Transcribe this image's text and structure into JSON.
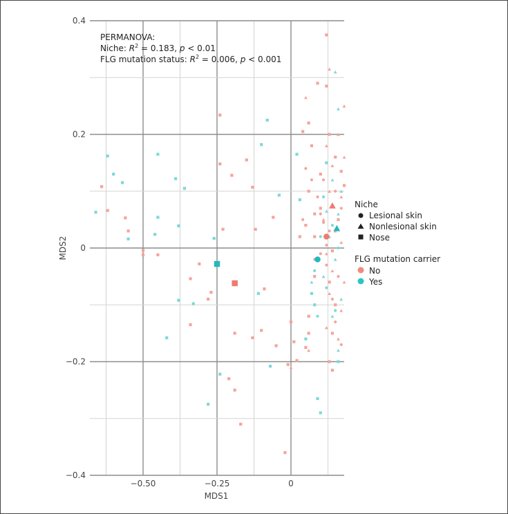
{
  "chart_data": {
    "type": "scatter",
    "xlabel": "MDS1",
    "ylabel": "MDS2",
    "xlim": [
      -0.68,
      0.18
    ],
    "ylim": [
      -0.4,
      0.4
    ],
    "xticks": [
      -0.5,
      -0.25,
      0
    ],
    "xtick_labels": [
      "−0.50",
      "−0.25",
      "0"
    ],
    "yticks": [
      0.4,
      0.2,
      0,
      -0.2,
      -0.4
    ],
    "ytick_labels": [
      "0.4",
      "0.2",
      "0",
      "−0.2",
      "−0.4"
    ],
    "annotation": {
      "title": "PERMANOVA:",
      "niche_prefix": "Niche: ",
      "r2_symbol": "R",
      "r2_exp": "2",
      "niche_value": " = 0.183, ",
      "p_symbol": "p",
      "niche_p": " < 0.01",
      "flg_prefix": "FLG mutation status: ",
      "flg_value": " = 0.006, ",
      "flg_p": " < 0.001"
    },
    "legend": {
      "niche_title": "Niche",
      "niche_items": [
        {
          "label": "Lesional skin",
          "shape": "circle"
        },
        {
          "label": "Nonlesional skin",
          "shape": "triangle"
        },
        {
          "label": "Nose",
          "shape": "square"
        }
      ],
      "flg_title": "FLG mutation carrier",
      "flg_items": [
        {
          "label": "No",
          "color": "#f08a80"
        },
        {
          "label": "Yes",
          "color": "#2ec4c4"
        }
      ]
    },
    "colors": {
      "No": "#f4a49b",
      "Yes": "#7dd9d6",
      "No_centroid": "#f07a70",
      "Yes_centroid": "#22b8bd"
    },
    "centroids": [
      {
        "niche": "Lesional skin",
        "flg": "No",
        "x": 0.12,
        "y": 0.02
      },
      {
        "niche": "Lesional skin",
        "flg": "Yes",
        "x": 0.09,
        "y": -0.02
      },
      {
        "niche": "Nonlesional skin",
        "flg": "No",
        "x": 0.14,
        "y": 0.075
      },
      {
        "niche": "Nonlesional skin",
        "flg": "Yes",
        "x": 0.155,
        "y": 0.035
      },
      {
        "niche": "Nose",
        "flg": "No",
        "x": -0.19,
        "y": -0.062
      },
      {
        "niche": "Nose",
        "flg": "Yes",
        "x": -0.25,
        "y": -0.028
      }
    ],
    "points": [
      {
        "n": "Nose",
        "f": "No",
        "x": -0.17,
        "y": -0.31
      },
      {
        "n": "Nose",
        "f": "No",
        "x": -0.02,
        "y": -0.36
      },
      {
        "n": "Nose",
        "f": "No",
        "x": -0.62,
        "y": 0.066
      },
      {
        "n": "Nose",
        "f": "No",
        "x": -0.64,
        "y": 0.108
      },
      {
        "n": "Nose",
        "f": "No",
        "x": -0.55,
        "y": 0.03
      },
      {
        "n": "Nose",
        "f": "No",
        "x": -0.56,
        "y": 0.053
      },
      {
        "n": "Nose",
        "f": "No",
        "x": -0.5,
        "y": -0.004
      },
      {
        "n": "Nose",
        "f": "No",
        "x": -0.5,
        "y": -0.012
      },
      {
        "n": "Nose",
        "f": "No",
        "x": -0.45,
        "y": -0.012
      },
      {
        "n": "Nose",
        "f": "No",
        "x": -0.31,
        "y": -0.028
      },
      {
        "n": "Nose",
        "f": "No",
        "x": -0.34,
        "y": -0.054
      },
      {
        "n": "Nose",
        "f": "No",
        "x": -0.27,
        "y": -0.078
      },
      {
        "n": "Nose",
        "f": "No",
        "x": -0.28,
        "y": -0.09
      },
      {
        "n": "Nose",
        "f": "No",
        "x": -0.34,
        "y": -0.135
      },
      {
        "n": "Nose",
        "f": "No",
        "x": -0.24,
        "y": 0.234
      },
      {
        "n": "Nose",
        "f": "No",
        "x": -0.24,
        "y": 0.148
      },
      {
        "n": "Nose",
        "f": "No",
        "x": -0.2,
        "y": 0.128
      },
      {
        "n": "Nose",
        "f": "No",
        "x": -0.19,
        "y": -0.15
      },
      {
        "n": "Nose",
        "f": "No",
        "x": -0.21,
        "y": -0.23
      },
      {
        "n": "Nose",
        "f": "No",
        "x": -0.19,
        "y": -0.25
      },
      {
        "n": "Nose",
        "f": "No",
        "x": -0.23,
        "y": 0.033
      },
      {
        "n": "Nose",
        "f": "No",
        "x": -0.13,
        "y": 0.107
      },
      {
        "n": "Nose",
        "f": "No",
        "x": -0.15,
        "y": 0.155
      },
      {
        "n": "Nose",
        "f": "No",
        "x": -0.12,
        "y": 0.033
      },
      {
        "n": "Nose",
        "f": "No",
        "x": -0.06,
        "y": 0.054
      },
      {
        "n": "Nose",
        "f": "No",
        "x": -0.09,
        "y": -0.072
      },
      {
        "n": "Nose",
        "f": "No",
        "x": -0.13,
        "y": -0.158
      },
      {
        "n": "Nose",
        "f": "No",
        "x": -0.1,
        "y": -0.145
      },
      {
        "n": "Nose",
        "f": "No",
        "x": -0.05,
        "y": -0.172
      },
      {
        "n": "Nose",
        "f": "No",
        "x": 0.0,
        "y": -0.13
      },
      {
        "n": "Nose",
        "f": "No",
        "x": 0.01,
        "y": -0.165
      },
      {
        "n": "Nose",
        "f": "No",
        "x": 0.02,
        "y": -0.198
      },
      {
        "n": "Nose",
        "f": "No",
        "x": -0.01,
        "y": -0.205
      },
      {
        "n": "Nose",
        "f": "No",
        "x": 0.06,
        "y": -0.15
      },
      {
        "n": "Nose",
        "f": "No",
        "x": 0.04,
        "y": 0.205
      },
      {
        "n": "Nose",
        "f": "No",
        "x": 0.06,
        "y": 0.1
      },
      {
        "n": "Nose",
        "f": "No",
        "x": 0.08,
        "y": 0.06
      },
      {
        "n": "Nose",
        "f": "No",
        "x": 0.05,
        "y": 0.04
      },
      {
        "n": "Nose",
        "f": "No",
        "x": 0.03,
        "y": 0.02
      },
      {
        "n": "Nose",
        "f": "No",
        "x": 0.1,
        "y": 0.13
      },
      {
        "n": "Nose",
        "f": "No",
        "x": 0.07,
        "y": 0.18
      },
      {
        "n": "Nose",
        "f": "No",
        "x": 0.06,
        "y": 0.22
      },
      {
        "n": "Nose",
        "f": "No",
        "x": 0.09,
        "y": 0.29
      },
      {
        "n": "Nose",
        "f": "No",
        "x": 0.1,
        "y": 0.07
      },
      {
        "n": "Nose",
        "f": "No",
        "x": 0.08,
        "y": 0.02
      },
      {
        "n": "Nose",
        "f": "No",
        "x": 0.08,
        "y": -0.05
      },
      {
        "n": "Nose",
        "f": "No",
        "x": 0.06,
        "y": -0.12
      },
      {
        "n": "Nose",
        "f": "No",
        "x": 0.05,
        "y": -0.175
      },
      {
        "n": "Nose",
        "f": "No",
        "x": 0.12,
        "y": 0.375
      },
      {
        "n": "Nose",
        "f": "No",
        "x": 0.12,
        "y": 0.285
      },
      {
        "n": "Nose",
        "f": "No",
        "x": 0.13,
        "y": 0.2
      },
      {
        "n": "Nose",
        "f": "No",
        "x": 0.15,
        "y": 0.16
      },
      {
        "n": "Nose",
        "f": "No",
        "x": 0.17,
        "y": 0.135
      },
      {
        "n": "Nose",
        "f": "No",
        "x": 0.18,
        "y": 0.11
      },
      {
        "n": "Nose",
        "f": "No",
        "x": 0.16,
        "y": 0.05
      },
      {
        "n": "Nose",
        "f": "No",
        "x": 0.14,
        "y": -0.005
      },
      {
        "n": "Nose",
        "f": "No",
        "x": 0.13,
        "y": -0.06
      },
      {
        "n": "Nose",
        "f": "No",
        "x": 0.15,
        "y": -0.1
      },
      {
        "n": "Nose",
        "f": "No",
        "x": 0.14,
        "y": -0.15
      },
      {
        "n": "Nose",
        "f": "No",
        "x": 0.13,
        "y": -0.2
      },
      {
        "n": "Nose",
        "f": "No",
        "x": 0.14,
        "y": -0.215
      },
      {
        "n": "Nose",
        "f": "Yes",
        "x": -0.66,
        "y": 0.063
      },
      {
        "n": "Nose",
        "f": "Yes",
        "x": -0.62,
        "y": 0.162
      },
      {
        "n": "Nose",
        "f": "Yes",
        "x": -0.6,
        "y": 0.13
      },
      {
        "n": "Nose",
        "f": "Yes",
        "x": -0.57,
        "y": 0.115
      },
      {
        "n": "Nose",
        "f": "Yes",
        "x": -0.55,
        "y": 0.016
      },
      {
        "n": "Nose",
        "f": "Yes",
        "x": -0.45,
        "y": 0.165
      },
      {
        "n": "Nose",
        "f": "Yes",
        "x": -0.45,
        "y": 0.054
      },
      {
        "n": "Nose",
        "f": "Yes",
        "x": -0.46,
        "y": 0.024
      },
      {
        "n": "Nose",
        "f": "Yes",
        "x": -0.39,
        "y": 0.122
      },
      {
        "n": "Nose",
        "f": "Yes",
        "x": -0.36,
        "y": 0.105
      },
      {
        "n": "Nose",
        "f": "Yes",
        "x": -0.38,
        "y": 0.039
      },
      {
        "n": "Nose",
        "f": "Yes",
        "x": -0.38,
        "y": -0.092
      },
      {
        "n": "Nose",
        "f": "Yes",
        "x": -0.33,
        "y": -0.098
      },
      {
        "n": "Nose",
        "f": "Yes",
        "x": -0.42,
        "y": -0.158
      },
      {
        "n": "Nose",
        "f": "Yes",
        "x": -0.26,
        "y": 0.017
      },
      {
        "n": "Nose",
        "f": "Yes",
        "x": -0.28,
        "y": -0.275
      },
      {
        "n": "Nose",
        "f": "Yes",
        "x": -0.24,
        "y": -0.222
      },
      {
        "n": "Nose",
        "f": "Yes",
        "x": -0.11,
        "y": -0.08
      },
      {
        "n": "Nose",
        "f": "Yes",
        "x": -0.08,
        "y": 0.225
      },
      {
        "n": "Nose",
        "f": "Yes",
        "x": -0.1,
        "y": 0.182
      },
      {
        "n": "Nose",
        "f": "Yes",
        "x": -0.04,
        "y": 0.093
      },
      {
        "n": "Nose",
        "f": "Yes",
        "x": -0.07,
        "y": -0.208
      },
      {
        "n": "Nose",
        "f": "Yes",
        "x": 0.02,
        "y": 0.165
      },
      {
        "n": "Nose",
        "f": "Yes",
        "x": 0.03,
        "y": 0.085
      },
      {
        "n": "Nose",
        "f": "Yes",
        "x": 0.05,
        "y": -0.16
      },
      {
        "n": "Nose",
        "f": "Yes",
        "x": 0.09,
        "y": -0.265
      },
      {
        "n": "Nose",
        "f": "Yes",
        "x": 0.1,
        "y": -0.29
      },
      {
        "n": "Nose",
        "f": "Yes",
        "x": 0.08,
        "y": -0.1
      },
      {
        "n": "Nose",
        "f": "Yes",
        "x": 0.07,
        "y": -0.08
      },
      {
        "n": "Nose",
        "f": "Yes",
        "x": 0.12,
        "y": 0.15
      },
      {
        "n": "Nose",
        "f": "Yes",
        "x": 0.16,
        "y": -0.2
      },
      {
        "n": "Lesional skin",
        "f": "No",
        "x": 0.1,
        "y": 0.06
      },
      {
        "n": "Lesional skin",
        "f": "No",
        "x": 0.11,
        "y": 0.045
      },
      {
        "n": "Lesional skin",
        "f": "No",
        "x": 0.13,
        "y": 0.03
      },
      {
        "n": "Lesional skin",
        "f": "No",
        "x": 0.12,
        "y": 0.005
      },
      {
        "n": "Lesional skin",
        "f": "No",
        "x": 0.1,
        "y": -0.01
      },
      {
        "n": "Lesional skin",
        "f": "No",
        "x": 0.15,
        "y": 0.1
      },
      {
        "n": "Lesional skin",
        "f": "No",
        "x": 0.16,
        "y": -0.05
      },
      {
        "n": "Lesional skin",
        "f": "No",
        "x": 0.14,
        "y": -0.09
      },
      {
        "n": "Lesional skin",
        "f": "No",
        "x": 0.11,
        "y": 0.12
      },
      {
        "n": "Lesional skin",
        "f": "No",
        "x": 0.09,
        "y": 0.09
      },
      {
        "n": "Lesional skin",
        "f": "No",
        "x": 0.17,
        "y": 0.07
      },
      {
        "n": "Lesional skin",
        "f": "No",
        "x": 0.12,
        "y": -0.03
      },
      {
        "n": "Lesional skin",
        "f": "No",
        "x": 0.05,
        "y": 0.14
      },
      {
        "n": "Lesional skin",
        "f": "No",
        "x": 0.07,
        "y": 0.12
      },
      {
        "n": "Lesional skin",
        "f": "No",
        "x": 0.04,
        "y": 0.05
      },
      {
        "n": "Lesional skin",
        "f": "No",
        "x": 0.08,
        "y": -0.02
      },
      {
        "n": "Lesional skin",
        "f": "No",
        "x": 0.15,
        "y": -0.13
      },
      {
        "n": "Lesional skin",
        "f": "No",
        "x": 0.17,
        "y": -0.17
      },
      {
        "n": "Lesional skin",
        "f": "Yes",
        "x": 0.1,
        "y": 0.02
      },
      {
        "n": "Lesional skin",
        "f": "Yes",
        "x": 0.08,
        "y": -0.04
      },
      {
        "n": "Lesional skin",
        "f": "Yes",
        "x": 0.14,
        "y": 0.04
      },
      {
        "n": "Lesional skin",
        "f": "Yes",
        "x": 0.12,
        "y": -0.07
      },
      {
        "n": "Lesional skin",
        "f": "Yes",
        "x": 0.16,
        "y": 0.0
      },
      {
        "n": "Lesional skin",
        "f": "Yes",
        "x": 0.11,
        "y": 0.09
      },
      {
        "n": "Lesional skin",
        "f": "Yes",
        "x": 0.09,
        "y": -0.12
      },
      {
        "n": "Lesional skin",
        "f": "Yes",
        "x": 0.15,
        "y": -0.11
      },
      {
        "n": "Nonlesional skin",
        "f": "No",
        "x": 0.05,
        "y": 0.265
      },
      {
        "n": "Nonlesional skin",
        "f": "No",
        "x": 0.13,
        "y": 0.315
      },
      {
        "n": "Nonlesional skin",
        "f": "No",
        "x": 0.18,
        "y": 0.25
      },
      {
        "n": "Nonlesional skin",
        "f": "No",
        "x": 0.12,
        "y": 0.18
      },
      {
        "n": "Nonlesional skin",
        "f": "No",
        "x": 0.16,
        "y": 0.2
      },
      {
        "n": "Nonlesional skin",
        "f": "No",
        "x": 0.14,
        "y": 0.145
      },
      {
        "n": "Nonlesional skin",
        "f": "No",
        "x": 0.18,
        "y": 0.16
      },
      {
        "n": "Nonlesional skin",
        "f": "No",
        "x": 0.13,
        "y": 0.1
      },
      {
        "n": "Nonlesional skin",
        "f": "No",
        "x": 0.17,
        "y": 0.09
      },
      {
        "n": "Nonlesional skin",
        "f": "No",
        "x": 0.11,
        "y": 0.05
      },
      {
        "n": "Nonlesional skin",
        "f": "No",
        "x": 0.15,
        "y": 0.03
      },
      {
        "n": "Nonlesional skin",
        "f": "No",
        "x": 0.17,
        "y": 0.01
      },
      {
        "n": "Nonlesional skin",
        "f": "No",
        "x": 0.12,
        "y": -0.01
      },
      {
        "n": "Nonlesional skin",
        "f": "No",
        "x": 0.14,
        "y": -0.04
      },
      {
        "n": "Nonlesional skin",
        "f": "No",
        "x": 0.18,
        "y": -0.06
      },
      {
        "n": "Nonlesional skin",
        "f": "No",
        "x": 0.13,
        "y": -0.08
      },
      {
        "n": "Nonlesional skin",
        "f": "No",
        "x": 0.17,
        "y": -0.11
      },
      {
        "n": "Nonlesional skin",
        "f": "No",
        "x": 0.12,
        "y": -0.14
      },
      {
        "n": "Nonlesional skin",
        "f": "No",
        "x": 0.16,
        "y": -0.16
      },
      {
        "n": "Nonlesional skin",
        "f": "No",
        "x": 0.06,
        "y": -0.18
      },
      {
        "n": "Nonlesional skin",
        "f": "No",
        "x": 0.0,
        "y": -0.21
      },
      {
        "n": "Nonlesional skin",
        "f": "Yes",
        "x": 0.15,
        "y": 0.31
      },
      {
        "n": "Nonlesional skin",
        "f": "Yes",
        "x": 0.16,
        "y": 0.245
      },
      {
        "n": "Nonlesional skin",
        "f": "Yes",
        "x": 0.14,
        "y": 0.12
      },
      {
        "n": "Nonlesional skin",
        "f": "Yes",
        "x": 0.17,
        "y": 0.1
      },
      {
        "n": "Nonlesional skin",
        "f": "Yes",
        "x": 0.12,
        "y": 0.065
      },
      {
        "n": "Nonlesional skin",
        "f": "Yes",
        "x": 0.16,
        "y": 0.06
      },
      {
        "n": "Nonlesional skin",
        "f": "Yes",
        "x": 0.13,
        "y": 0.02
      },
      {
        "n": "Nonlesional skin",
        "f": "Yes",
        "x": 0.15,
        "y": -0.02
      },
      {
        "n": "Nonlesional skin",
        "f": "Yes",
        "x": 0.11,
        "y": -0.05
      },
      {
        "n": "Nonlesional skin",
        "f": "Yes",
        "x": 0.17,
        "y": -0.09
      },
      {
        "n": "Nonlesional skin",
        "f": "Yes",
        "x": 0.14,
        "y": -0.12
      },
      {
        "n": "Nonlesional skin",
        "f": "Yes",
        "x": 0.16,
        "y": -0.18
      },
      {
        "n": "Nonlesional skin",
        "f": "Yes",
        "x": 0.07,
        "y": -0.06
      }
    ]
  }
}
